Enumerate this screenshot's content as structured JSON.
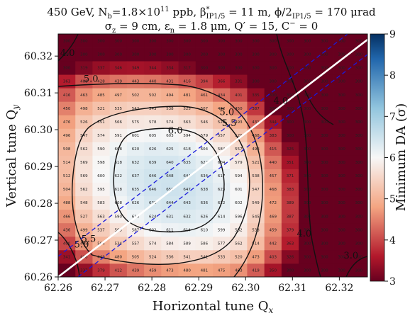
{
  "chart_data": {
    "type": "heatmap",
    "title_line1": "450 GeV, Nₕ=1.8×10¹¹ ppb, β*ᴵᴾ¹ᐟ⁵ = 11 m, ϕ/2ᴵᴾ¹ᐟ⁵ = 170 μrad",
    "title_line1_parts": {
      "a": "450 GeV, N",
      "a_sub": "b",
      "b": "=1.8×10",
      "b_sup": "11",
      "c": " ppb, β",
      "c_sup": "*",
      "c_sub": "IP1/5",
      "d": " = 11 m, ϕ/2",
      "d_sub": "IP1/5",
      "e": " = 170 μrad"
    },
    "title_line2_parts": {
      "a": "σ",
      "a_sub": "z",
      "b": " = 9 cm, ε",
      "b_sub": "n",
      "c": " = 1.8 μm, Q′ = 15, C",
      "c_sup": "−",
      "d": " = 0"
    },
    "xlabel": "Horizontal tune Q",
    "xlabel_sub": "x",
    "ylabel": "Vertical tune Q",
    "ylabel_sub": "y",
    "colorbar_label": "Minimum DA (σ)",
    "x_ticks": [
      "62.26",
      "62.27",
      "62.28",
      "62.29",
      "62.30",
      "62.31",
      "62.32"
    ],
    "y_ticks": [
      "60.26",
      "60.27",
      "60.28",
      "60.29",
      "60.30",
      "60.31",
      "60.32"
    ],
    "colorbar_ticks": [
      "3",
      "4",
      "5",
      "6",
      "7",
      "8",
      "9"
    ],
    "xlim": [
      62.26,
      62.326
    ],
    "ylim": [
      60.26,
      60.326
    ],
    "clim": [
      3,
      9
    ],
    "grid_n": 18,
    "contour_labels": [
      {
        "text": "4.0",
        "x": 62.262,
        "y": 60.32
      },
      {
        "text": "5.0",
        "x": 62.267,
        "y": 60.313
      },
      {
        "text": "5.0",
        "x": 62.296,
        "y": 60.304
      },
      {
        "text": "5.5",
        "x": 62.2965,
        "y": 60.301
      },
      {
        "text": "6.0",
        "x": 62.285,
        "y": 60.299
      },
      {
        "text": "4.0",
        "x": 62.3075,
        "y": 60.307
      },
      {
        "text": "5.0",
        "x": 62.265,
        "y": 60.268
      },
      {
        "text": "5.5",
        "x": 62.2665,
        "y": 60.2695
      },
      {
        "text": "4.0",
        "x": 62.3125,
        "y": 60.271
      },
      {
        "text": "3.0",
        "x": 62.3225,
        "y": 60.265
      }
    ]
  }
}
